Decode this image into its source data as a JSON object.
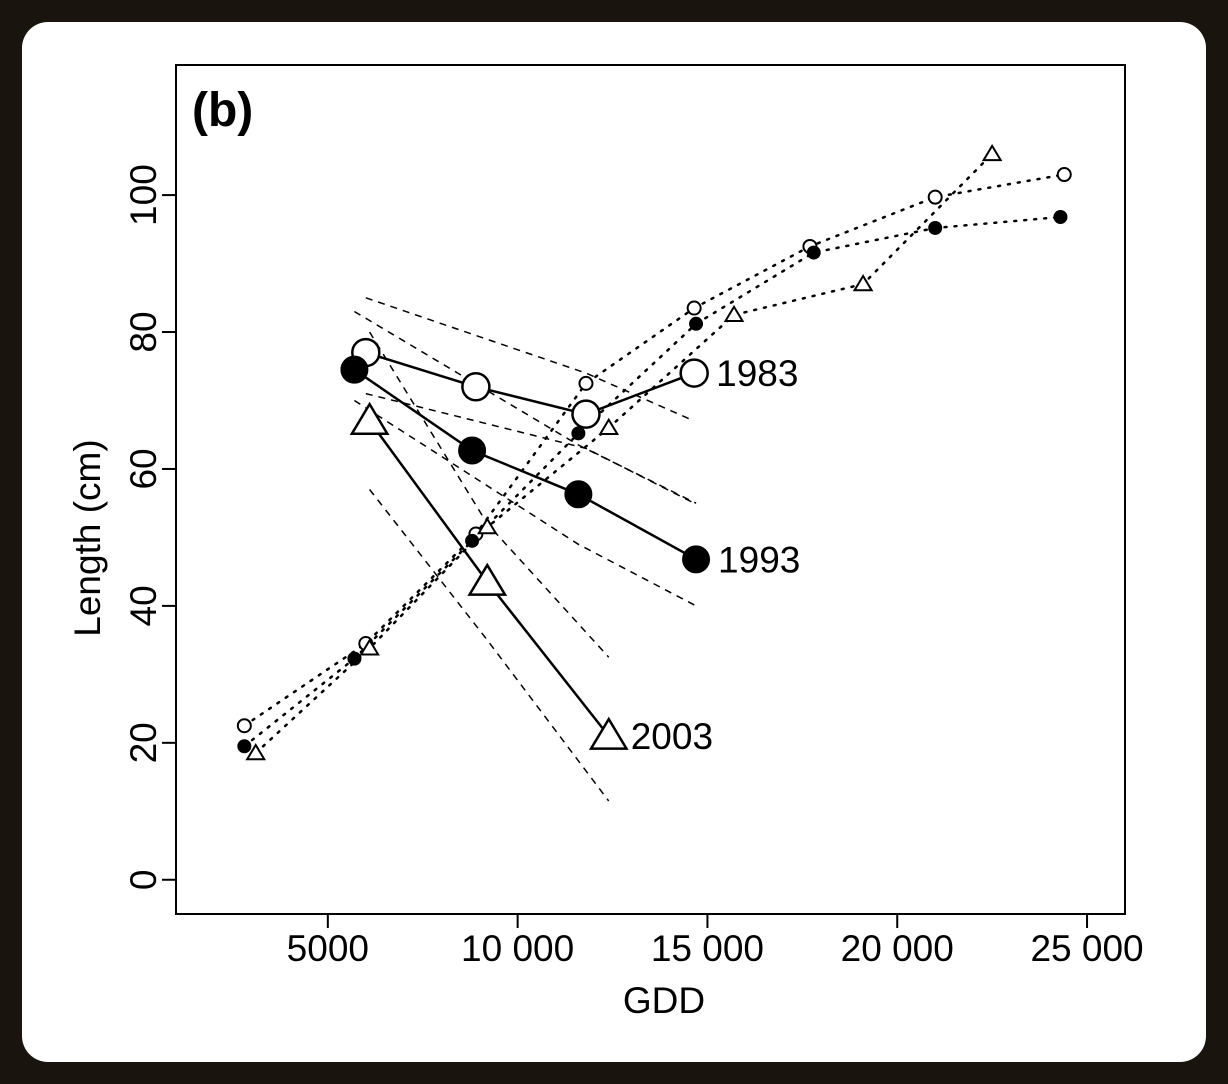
{
  "chart_data": {
    "type": "line",
    "panel_label": "(b)",
    "xlabel": "GDD",
    "ylabel": "Length (cm)",
    "xlim": [
      1000,
      26000
    ],
    "ylim": [
      -5,
      119
    ],
    "x_ticks": [
      5000,
      10000,
      15000,
      20000,
      25000
    ],
    "x_tick_labels": [
      "5000",
      "10 000",
      "15 000",
      "20 000",
      "25 000"
    ],
    "y_ticks": [
      0,
      20,
      40,
      60,
      80,
      100
    ],
    "y_tick_labels": [
      "0",
      "20",
      "40",
      "60",
      "80",
      "100"
    ],
    "grid": false,
    "legend": "none",
    "series": [
      {
        "name": "1983",
        "marker": "open-circle",
        "solid": {
          "x": [
            6000,
            8900,
            11800,
            14650
          ],
          "y": [
            77,
            72,
            68,
            74
          ]
        },
        "ci_upper": {
          "x": [
            6000,
            11800,
            14650
          ],
          "y": [
            85,
            74,
            67
          ]
        },
        "ci_lower": {
          "x": [
            6000,
            11800,
            14650
          ],
          "y": [
            71,
            63,
            55
          ]
        },
        "dotted": {
          "x": [
            2800,
            6000,
            8900,
            11800,
            14650,
            17700,
            21000,
            24400
          ],
          "y": [
            22.5,
            34.5,
            50.5,
            72.5,
            83.5,
            92.5,
            99.7,
            103
          ]
        }
      },
      {
        "name": "1993",
        "marker": "filled-circle",
        "solid": {
          "x": [
            5700,
            8800,
            11600,
            14700
          ],
          "y": [
            74.5,
            62.7,
            56.3,
            46.8
          ]
        },
        "ci_upper": {
          "x": [
            5700,
            11600,
            14700
          ],
          "y": [
            83,
            63.5,
            55
          ]
        },
        "ci_lower": {
          "x": [
            5700,
            11600,
            14700
          ],
          "y": [
            70,
            49,
            40
          ]
        },
        "dotted": {
          "x": [
            2800,
            5700,
            8800,
            11600,
            14700,
            17800,
            21000,
            24300
          ],
          "y": [
            19.5,
            32.3,
            49.5,
            65.2,
            81.2,
            91.6,
            95.2,
            96.8
          ]
        }
      },
      {
        "name": "2003",
        "marker": "open-triangle",
        "solid": {
          "x": [
            6100,
            9200,
            12400
          ],
          "y": [
            67,
            43.5,
            21
          ]
        },
        "ci_upper": {
          "x": [
            6100,
            9200,
            12400
          ],
          "y": [
            80,
            52,
            32.5
          ]
        },
        "ci_lower": {
          "x": [
            6100,
            9200,
            12400
          ],
          "y": [
            57,
            35,
            11.5
          ]
        },
        "dotted": {
          "x": [
            3100,
            6100,
            9200,
            12400,
            15700,
            19100,
            22500
          ],
          "y": [
            18.5,
            33.8,
            51.5,
            66,
            82.5,
            87,
            106
          ]
        }
      }
    ]
  }
}
